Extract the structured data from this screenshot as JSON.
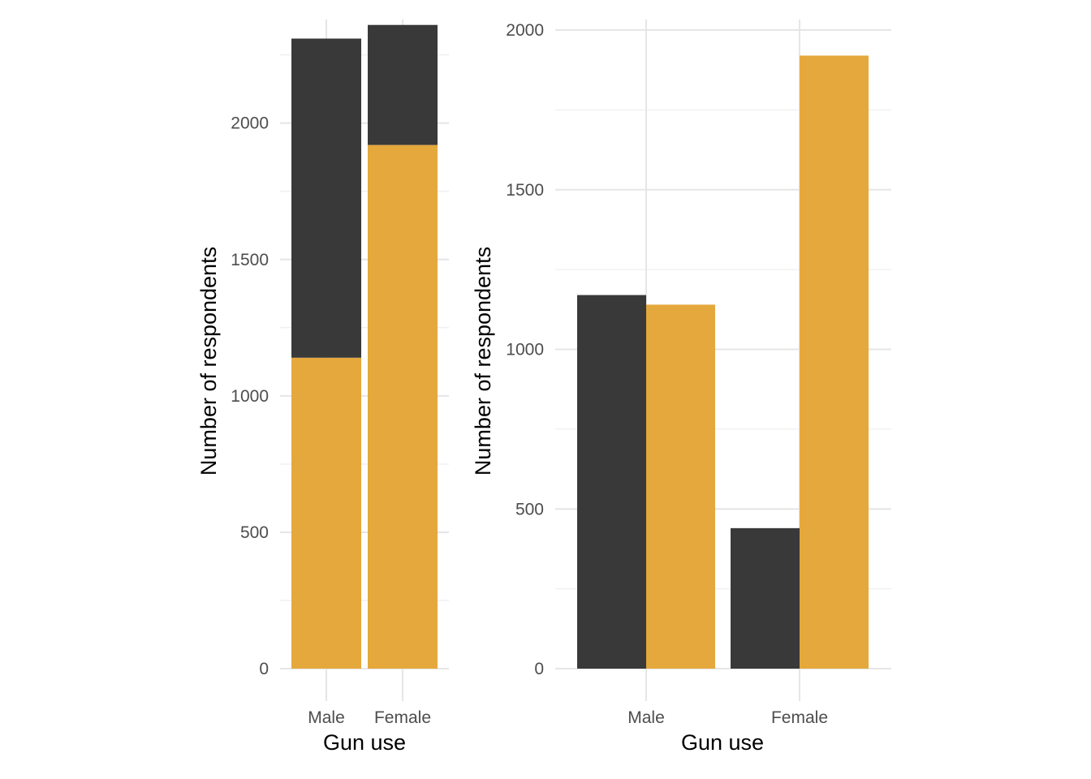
{
  "chart_data": [
    {
      "type": "bar",
      "stacked": true,
      "categories": [
        "Male",
        "Female"
      ],
      "series": [
        {
          "values": [
            1170,
            440
          ],
          "color": "#333333"
        },
        {
          "values": [
            1140,
            1920
          ],
          "color": "#E4A537"
        }
      ],
      "xlabel": "Gun use",
      "ylabel": "Number of respondents",
      "ylim": [
        0,
        2380
      ],
      "yticks": [
        0,
        500,
        1000,
        1500,
        2000
      ],
      "yticks_minor": [
        250,
        750,
        1250,
        1750,
        2250
      ],
      "grid": true
    },
    {
      "type": "bar",
      "stacked": false,
      "categories": [
        "Male",
        "Female"
      ],
      "series": [
        {
          "values": [
            1170,
            440
          ],
          "color": "#333333"
        },
        {
          "values": [
            1140,
            1920
          ],
          "color": "#E4A537"
        }
      ],
      "xlabel": "Gun use",
      "ylabel": "Number of respondents",
      "ylim": [
        0,
        2000
      ],
      "yticks": [
        0,
        500,
        1000,
        1500,
        2000
      ],
      "yticks_minor": [
        250,
        750,
        1250,
        1750
      ],
      "grid": true
    }
  ]
}
